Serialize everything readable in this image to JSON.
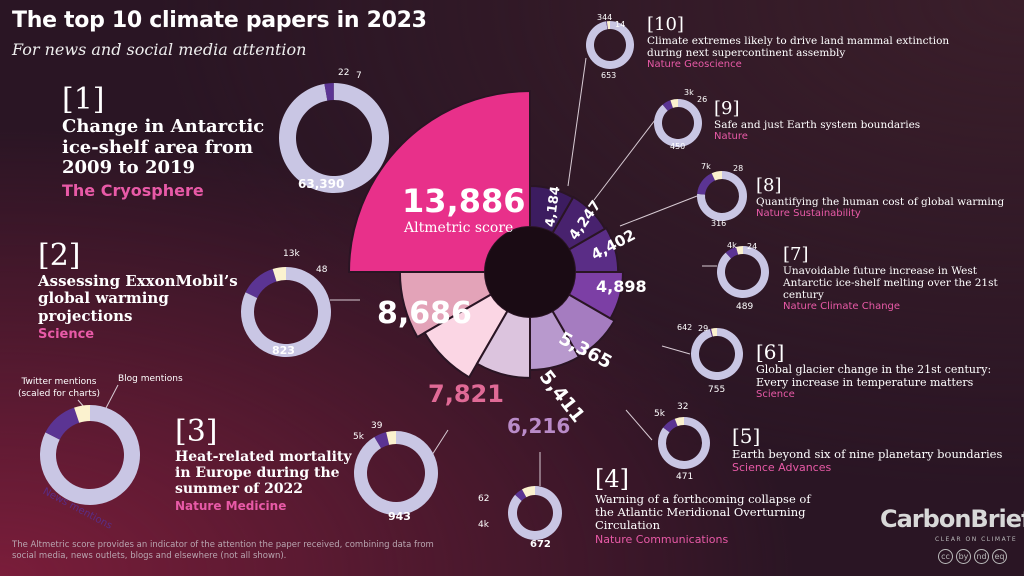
{
  "header": {
    "title": "The top 10 climate papers in 2023",
    "subtitle": "For news and social media attention"
  },
  "legend": {
    "twitter": "Twitter mentions (scaled for charts)",
    "blog": "Blog mentions",
    "news": "News mentions"
  },
  "center_label": "Altmetric score",
  "colors": {
    "news": "#c9c6e4",
    "twitter": "#5b3493",
    "blog": "#fbf2cf"
  },
  "papers": [
    {
      "rank": "[1]",
      "title": "Change in Antarctic ice-shelf area from 2009 to 2019",
      "journal": "The Cryosphere",
      "score_text": "13,886",
      "news_text": "63,390",
      "twitter_text": "",
      "blog_text": "22",
      "extra_text": "7"
    },
    {
      "rank": "[2]",
      "title": "Assessing ExxonMobil’s global warming projections",
      "journal": "Science",
      "score_text": "8,686",
      "news_text": "823",
      "twitter_text": "13k",
      "blog_text": "48"
    },
    {
      "rank": "[3]",
      "title": "Heat-related mortality in Europe during the summer of 2022",
      "journal": "Nature Medicine",
      "score_text": "7,821",
      "news_text": "943",
      "twitter_text": "5k",
      "blog_text": "39"
    },
    {
      "rank": "[4]",
      "title": "Warning of a forthcoming collapse of the Atlantic Meridional Overturning Circulation",
      "journal": "Nature Communications",
      "score_text": "6,216",
      "news_text": "672",
      "twitter_text": "4k",
      "blog_text": "62"
    },
    {
      "rank": "[5]",
      "title": "Earth beyond six of nine planetary boundaries",
      "journal": "Science Advances",
      "score_text": "5,411",
      "news_text": "471",
      "twitter_text": "5k",
      "blog_text": "32"
    },
    {
      "rank": "[6]",
      "title": "Global glacier change in the 21st century: Every increase in temperature matters",
      "journal": "Science",
      "score_text": "5,365",
      "news_text": "755",
      "twitter_text": "642",
      "blog_text": "29"
    },
    {
      "rank": "[7]",
      "title": "Unavoidable future increase in West Antarctic ice-shelf melting over the 21st century",
      "journal": "Nature Climate Change",
      "score_text": "4,898",
      "news_text": "489",
      "twitter_text": "4k",
      "blog_text": "24"
    },
    {
      "rank": "[8]",
      "title": "Quantifying the human cost of global warming",
      "journal": "Nature Sustainability",
      "score_text": "4,402",
      "news_text": "316",
      "twitter_text": "7k",
      "blog_text": "28"
    },
    {
      "rank": "[9]",
      "title": "Safe and just Earth system boundaries",
      "journal": "Nature",
      "score_text": "4,247",
      "news_text": "450",
      "twitter_text": "3k",
      "blog_text": "26"
    },
    {
      "rank": "[10]",
      "title": "Climate extremes likely to drive land mammal extinction during next supercontinent assembly",
      "journal": "Nature Geoscience",
      "score_text": "4,184",
      "news_text": "653",
      "twitter_text": "344",
      "blog_text": "14"
    }
  ],
  "chart_data": {
    "type": "pie",
    "title": "The top 10 climate papers in 2023",
    "subtitle": "For news and social media attention",
    "categories": [
      "[1]",
      "[2]",
      "[3]",
      "[4]",
      "[5]",
      "[6]",
      "[7]",
      "[8]",
      "[9]",
      "[10]"
    ],
    "values": [
      13886,
      8686,
      7821,
      6216,
      5411,
      5365,
      4898,
      4402,
      4247,
      4184
    ],
    "slice_colors": [
      "#e8308a",
      "#e3a3b8",
      "#fbd6e4",
      "#dcc4de",
      "#b899cd",
      "#a57cc0",
      "#7c3fa5",
      "#5a2d86",
      "#48226e",
      "#3c1c60"
    ],
    "donuts": [
      {
        "paper": "[1]",
        "news": 63390,
        "twitter": 1800,
        "blog": 22
      },
      {
        "paper": "[2]",
        "news": 823,
        "twitter": 130,
        "blog": 48
      },
      {
        "paper": "[3]",
        "news": 943,
        "twitter": 50,
        "blog": 39
      },
      {
        "paper": "[4]",
        "news": 672,
        "twitter": 40,
        "blog": 62
      },
      {
        "paper": "[5]",
        "news": 471,
        "twitter": 50,
        "blog": 32
      },
      {
        "paper": "[6]",
        "news": 755,
        "twitter": 6,
        "blog": 29
      },
      {
        "paper": "[7]",
        "news": 489,
        "twitter": 40,
        "blog": 24
      },
      {
        "paper": "[8]",
        "news": 316,
        "twitter": 70,
        "blog": 28
      },
      {
        "paper": "[9]",
        "news": 450,
        "twitter": 30,
        "blog": 26
      },
      {
        "paper": "[10]",
        "news": 653,
        "twitter": 3,
        "blog": 14
      }
    ],
    "legend_donut": {
      "news": 80,
      "twitter": 12,
      "blog": 5
    }
  },
  "footnote": "The Altmetric score provides an indicator of the attention the paper received, combining data from social media, news outlets, blogs and elsewhere (not all shown).",
  "brand": {
    "name": "CarbonBrief",
    "tagline": "CLEAR ON CLIMATE",
    "license_icons": [
      "cc",
      "by",
      "nd",
      "eq"
    ]
  }
}
